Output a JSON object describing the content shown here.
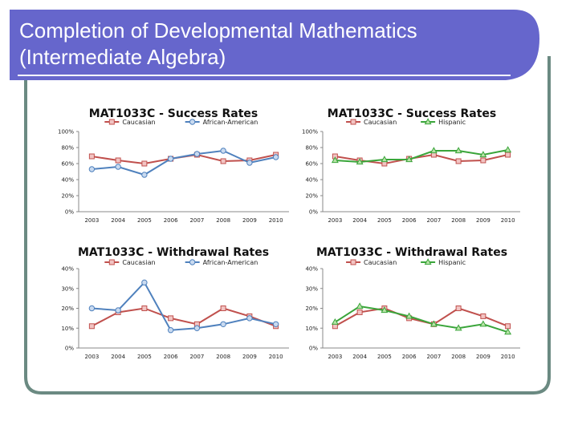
{
  "slide": {
    "title_line1": "Completion of Developmental Mathematics",
    "title_line2": "(Intermediate Algebra)"
  },
  "colors": {
    "banner": "#6666cc",
    "frame": "#6b8a82",
    "caucasian": "#c0504d",
    "african_american": "#4f81bd",
    "hispanic": "#3aa53a"
  },
  "chart_data": [
    {
      "type": "line",
      "title": "MAT1033C - Success Rates",
      "categories": [
        "2003",
        "2004",
        "2005",
        "2006",
        "2007",
        "2008",
        "2009",
        "2010"
      ],
      "ylim": [
        0,
        100
      ],
      "yticks": [
        "0%",
        "20%",
        "40%",
        "60%",
        "80%",
        "100%"
      ],
      "grid": false,
      "legend": "top",
      "series": [
        {
          "name": "Caucasian",
          "values": [
            69,
            64,
            60,
            66,
            71,
            63,
            64,
            71
          ],
          "color": "#c0504d",
          "marker": "square"
        },
        {
          "name": "African-American",
          "values": [
            53,
            56,
            46,
            66,
            72,
            76,
            61,
            68
          ],
          "color": "#4f81bd",
          "marker": "circle"
        }
      ]
    },
    {
      "type": "line",
      "title": "MAT1033C - Success Rates",
      "categories": [
        "2003",
        "2004",
        "2005",
        "2006",
        "2007",
        "2008",
        "2009",
        "2010"
      ],
      "ylim": [
        0,
        100
      ],
      "yticks": [
        "0%",
        "20%",
        "40%",
        "60%",
        "80%",
        "100%"
      ],
      "grid": false,
      "legend": "top",
      "series": [
        {
          "name": "Caucasian",
          "values": [
            69,
            64,
            60,
            66,
            71,
            63,
            64,
            71
          ],
          "color": "#c0504d",
          "marker": "square"
        },
        {
          "name": "Hispanic",
          "values": [
            64,
            62,
            65,
            65,
            76,
            76,
            71,
            77
          ],
          "color": "#3aa53a",
          "marker": "triangle"
        }
      ]
    },
    {
      "type": "line",
      "title": "MAT1033C - Withdrawal Rates",
      "categories": [
        "2003",
        "2004",
        "2005",
        "2006",
        "2007",
        "2008",
        "2009",
        "2010"
      ],
      "ylim": [
        0,
        40
      ],
      "yticks": [
        "0%",
        "10%",
        "20%",
        "30%",
        "40%"
      ],
      "grid": false,
      "legend": "top",
      "series": [
        {
          "name": "Caucasian",
          "values": [
            11,
            18,
            20,
            15,
            12,
            20,
            16,
            11
          ],
          "color": "#c0504d",
          "marker": "square"
        },
        {
          "name": "African-American",
          "values": [
            20,
            19,
            33,
            9,
            10,
            12,
            15,
            12
          ],
          "color": "#4f81bd",
          "marker": "circle"
        }
      ]
    },
    {
      "type": "line",
      "title": "MAT1033C - Withdrawal Rates",
      "categories": [
        "2003",
        "2004",
        "2005",
        "2006",
        "2007",
        "2008",
        "2009",
        "2010"
      ],
      "ylim": [
        0,
        40
      ],
      "yticks": [
        "0%",
        "10%",
        "20%",
        "30%",
        "40%"
      ],
      "grid": false,
      "legend": "top",
      "series": [
        {
          "name": "Caucasian",
          "values": [
            11,
            18,
            20,
            15,
            12,
            20,
            16,
            11
          ],
          "color": "#c0504d",
          "marker": "square"
        },
        {
          "name": "Hispanic",
          "values": [
            13,
            21,
            19,
            16,
            12,
            10,
            12,
            8
          ],
          "color": "#3aa53a",
          "marker": "triangle"
        }
      ]
    }
  ]
}
